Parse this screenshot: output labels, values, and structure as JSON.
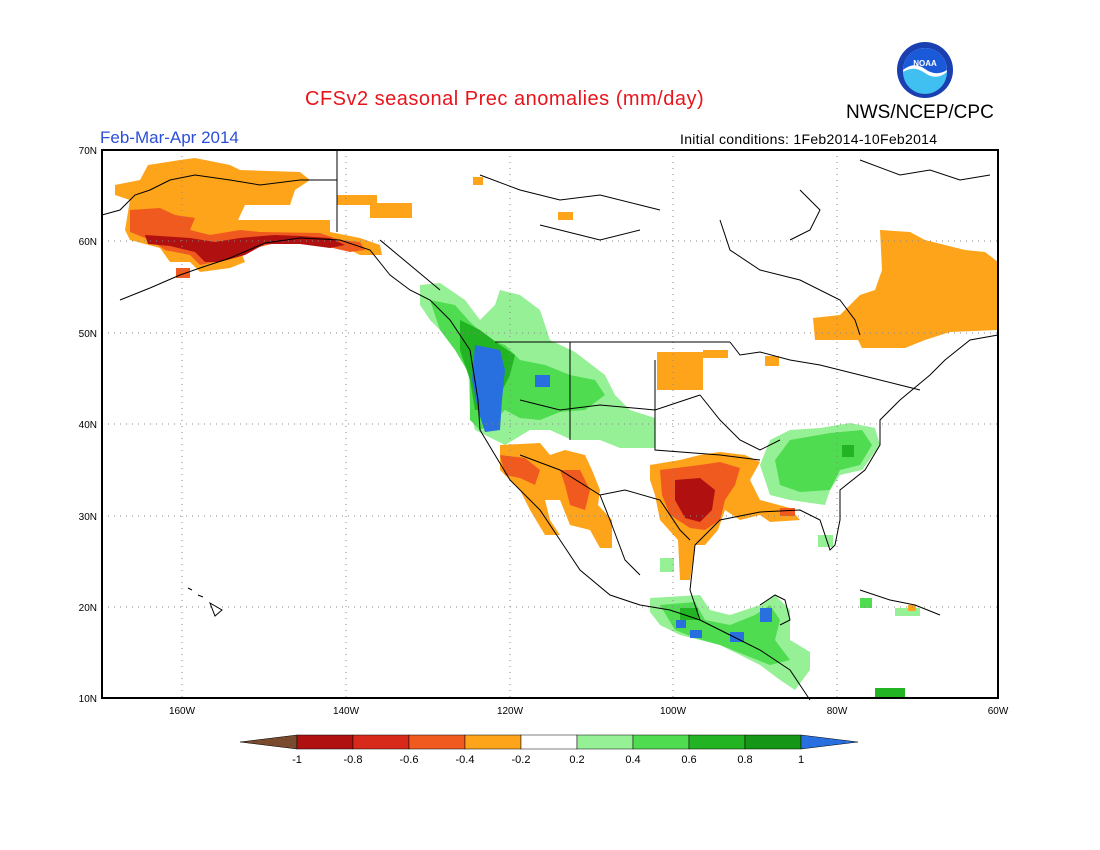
{
  "header": {
    "title": "CFSv2 seasonal Prec anomalies (mm/day)",
    "agency": "NWS/NCEP/CPC",
    "season": "Feb-Mar-Apr 2014",
    "initial_conditions": "Initial conditions: 1Feb2014-10Feb2014"
  },
  "logo": {
    "icon": "noaa-logo-icon",
    "text": "NOAA"
  },
  "map": {
    "lat_labels": [
      "70N",
      "60N",
      "50N",
      "40N",
      "30N",
      "20N",
      "10N"
    ],
    "lon_labels": [
      "160W",
      "140W",
      "120W",
      "100W",
      "80W",
      "60W"
    ]
  },
  "colorbar": {
    "labels": [
      "-1",
      "-0.8",
      "-0.6",
      "-0.4",
      "-0.2",
      "0.2",
      "0.4",
      "0.6",
      "0.8",
      "1"
    ],
    "colors": {
      "lt_-1": "#7a4a2e",
      "-1_-0.8": "#b01010",
      "-0.8_-0.6": "#d82a1a",
      "-0.6_-0.4": "#f05a1e",
      "-0.4_-0.2": "#fea41a",
      "-0.2_0.2": "#ffffff",
      "0.2_0.4": "#96f096",
      "0.4_0.6": "#50dc50",
      "0.6_0.8": "#23b423",
      "0.8_1": "#169616",
      "gt_1": "#2870e0"
    }
  }
}
